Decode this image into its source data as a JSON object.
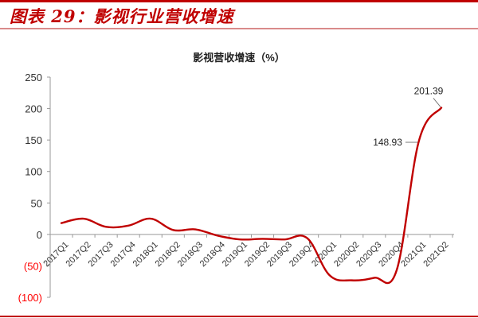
{
  "figure": {
    "title": "图表 29：影视行业营收增速",
    "accent_color": "#c00000"
  },
  "chart_data": {
    "type": "line",
    "title": "影视营收增速（%）",
    "xlabel": "",
    "ylabel": "",
    "categories": [
      "2017Q1",
      "2017Q2",
      "2017Q3",
      "2017Q4",
      "2018Q1",
      "2018Q2",
      "2018Q3",
      "2018Q4",
      "2019Q1",
      "2019Q2",
      "2019Q3",
      "2019Q4",
      "2020Q1",
      "2020Q2",
      "2020Q3",
      "2020Q4",
      "2021Q1",
      "2021Q2"
    ],
    "series": [
      {
        "name": "影视营收增速",
        "color": "#c00000",
        "smooth": true,
        "values": [
          18,
          25,
          12,
          14,
          25,
          7,
          8,
          -2,
          -8,
          -7,
          -8,
          -6,
          -65,
          -73,
          -69,
          -57,
          148.93,
          201.39
        ]
      }
    ],
    "annotations": [
      {
        "category": "2021Q1",
        "label": "148.93"
      },
      {
        "category": "2021Q2",
        "label": "201.39"
      }
    ],
    "ylim": [
      -100,
      250
    ],
    "yticks": [
      250,
      200,
      150,
      100,
      50,
      0,
      -50,
      -100
    ],
    "ytick_labels": [
      "250",
      "200",
      "150",
      "100",
      "50",
      "0",
      "(50)",
      "(100)"
    ],
    "negative_label_color": "#ff0000",
    "grid": false,
    "legend": "none"
  }
}
